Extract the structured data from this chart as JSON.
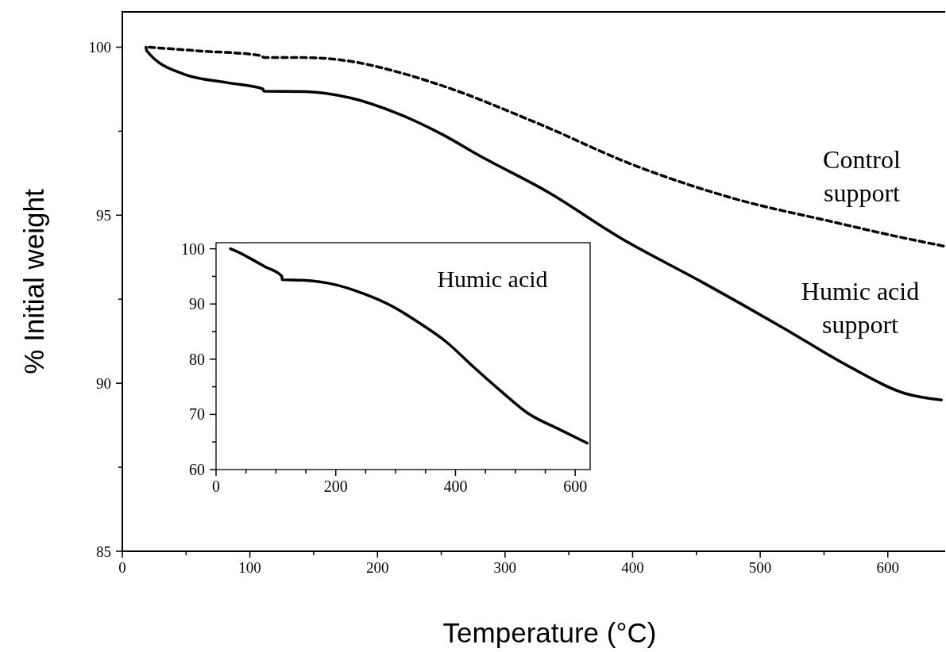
{
  "chart_data": [
    {
      "type": "line",
      "xlabel": "Temperature (°C)",
      "ylabel": "% Initial weight",
      "xlim": [
        0,
        645
      ],
      "ylim": [
        85,
        101.05
      ],
      "xticks": [
        0,
        {
          "value": 50,
          "label": null
        },
        100,
        {
          "value": 150,
          "label": null
        },
        200,
        {
          "value": 250,
          "label": null
        },
        300,
        {
          "value": 350,
          "label": null
        },
        400,
        {
          "value": 450,
          "label": null
        },
        500,
        {
          "value": 550,
          "label": null
        },
        600
      ],
      "yticks": [
        85,
        {
          "value": 87.5,
          "label": null
        },
        90,
        {
          "value": 92.5,
          "label": null
        },
        95,
        {
          "value": 97.5,
          "label": null
        },
        100
      ],
      "series": [
        {
          "name": "Control support",
          "color": "#000000",
          "line_style": "dashed",
          "x": [
            21,
            60,
            107,
            112,
            143,
            179,
            215,
            251,
            324,
            401,
            479,
            556,
            608,
            644
          ],
          "values": [
            100,
            99.89,
            99.76,
            99.69,
            99.69,
            99.58,
            99.27,
            98.85,
            97.76,
            96.49,
            95.5,
            94.81,
            94.36,
            94.08
          ]
        },
        {
          "name": "Humic acid support",
          "color": "#000000",
          "line_style": "solid",
          "x": [
            18.6,
            19,
            48,
            83,
            110,
            111,
            143,
            179,
            215,
            251,
            280,
            334,
            391,
            453,
            517,
            570,
            614,
            642
          ],
          "values": [
            100,
            99.9,
            99.2,
            98.94,
            98.76,
            98.69,
            98.68,
            98.49,
            98.04,
            97.4,
            96.77,
            95.68,
            94.31,
            93.04,
            91.67,
            90.49,
            89.69,
            89.5
          ]
        }
      ]
    },
    {
      "type": "line",
      "xlim": [
        0,
        625
      ],
      "ylim": [
        60,
        101.1
      ],
      "xticks": [
        0,
        {
          "value": 50,
          "label": null
        },
        {
          "value": 100,
          "label": null
        },
        {
          "value": 150,
          "label": null
        },
        200,
        {
          "value": 250,
          "label": null
        },
        {
          "value": 300,
          "label": null
        },
        {
          "value": 350,
          "label": null
        },
        400,
        {
          "value": 450,
          "label": null
        },
        {
          "value": 500,
          "label": null
        },
        {
          "value": 550,
          "label": null
        },
        600
      ],
      "yticks": [
        60,
        {
          "value": 65,
          "label": null
        },
        70,
        {
          "value": 75,
          "label": null
        },
        80,
        {
          "value": 85,
          "label": null
        },
        90,
        {
          "value": 95,
          "label": null
        },
        100
      ],
      "series": [
        {
          "name": "Humic acid",
          "color": "#000000",
          "line_style": "solid",
          "x": [
            24,
            40,
            53,
            81,
            110,
            110.5,
            144,
            199,
            248,
            294,
            339,
            385,
            430,
            476,
            521,
            575,
            620
          ],
          "values": [
            100,
            99.25,
            98.5,
            96.8,
            95,
            94.4,
            94.3,
            93.5,
            91.8,
            89.6,
            86.6,
            83.1,
            78.6,
            74.2,
            70.2,
            67.2,
            64.8
          ]
        }
      ]
    }
  ]
}
